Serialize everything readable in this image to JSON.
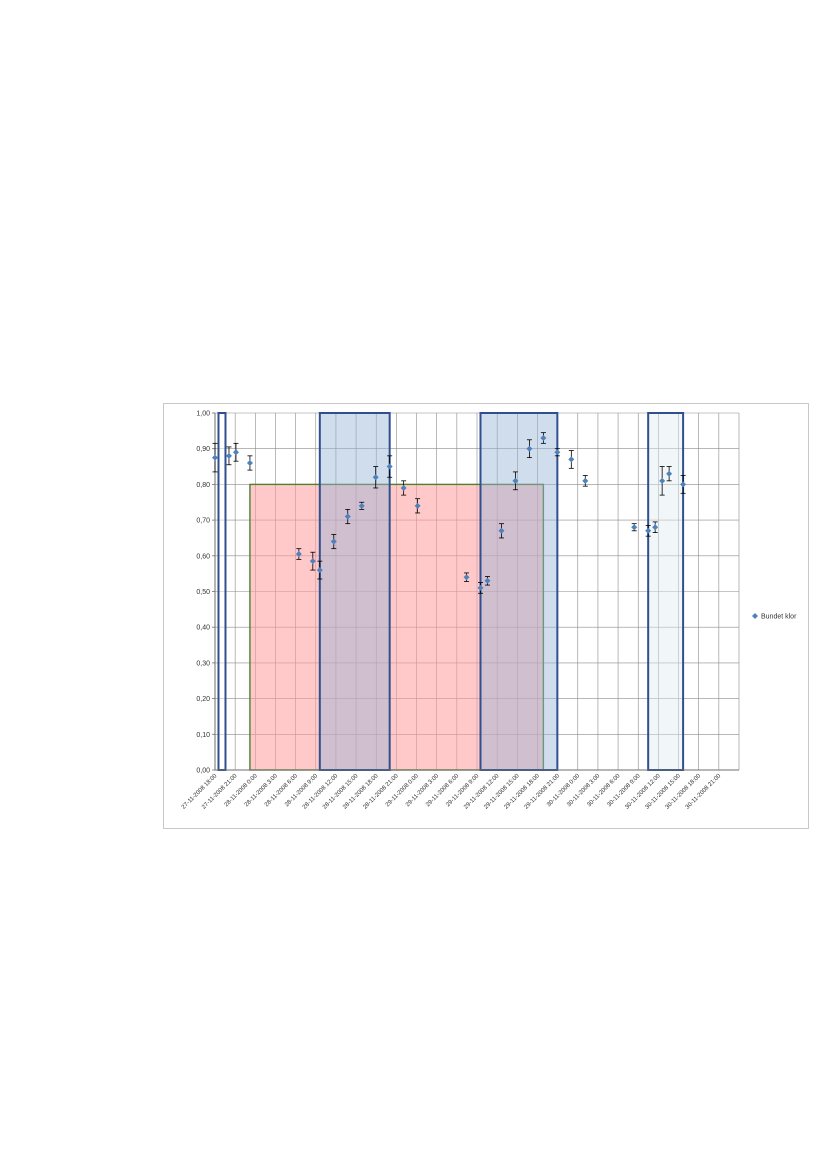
{
  "chart_data": {
    "type": "scatter",
    "title": "",
    "xlabel": "",
    "ylabel": "",
    "ylim": [
      0,
      1
    ],
    "y_ticks": [
      "0,00",
      "0,10",
      "0,20",
      "0,30",
      "0,40",
      "0,50",
      "0,60",
      "0,70",
      "0,80",
      "0,90",
      "1,00"
    ],
    "x_tick_labels": [
      "27-11-2008 18:00",
      "27-11-2008 21:00",
      "28-11-2008 0:00",
      "28-11-2008 3:00",
      "28-11-2008 6:00",
      "28-11-2008 9:00",
      "28-11-2008 12:00",
      "28-11-2008 15:00",
      "28-11-2008 18:00",
      "28-11-2008 21:00",
      "29-11-2008 0:00",
      "29-11-2008 3:00",
      "29-11-2008 6:00",
      "29-11-2008 9:00",
      "29-11-2008 12:00",
      "29-11-2008 15:00",
      "29-11-2008 18:00",
      "29-11-2008 21:00",
      "30-11-2008 0:00",
      "30-11-2008 3:00",
      "30-11-2008 6:00",
      "30-11-2008 9:00",
      "30-11-2008 12:00",
      "30-11-2008 15:00",
      "30-11-2008 18:00",
      "30-11-2008 21:00"
    ],
    "x_range_hours": [
      0,
      75
    ],
    "grid": true,
    "legend_position": "right",
    "series": [
      {
        "name": "Bundet klor",
        "color": "#4f81bd",
        "points": [
          {
            "x": 0.0,
            "y": 0.875,
            "err": 0.04
          },
          {
            "x": 2.0,
            "y": 0.88,
            "err": 0.025
          },
          {
            "x": 3.0,
            "y": 0.89,
            "err": 0.025
          },
          {
            "x": 5.0,
            "y": 0.86,
            "err": 0.02
          },
          {
            "x": 12.0,
            "y": 0.605,
            "err": 0.015
          },
          {
            "x": 14.0,
            "y": 0.585,
            "err": 0.025
          },
          {
            "x": 15.0,
            "y": 0.56,
            "err": 0.025
          },
          {
            "x": 17.0,
            "y": 0.64,
            "err": 0.02
          },
          {
            "x": 19.0,
            "y": 0.71,
            "err": 0.02
          },
          {
            "x": 21.0,
            "y": 0.74,
            "err": 0.01
          },
          {
            "x": 23.0,
            "y": 0.82,
            "err": 0.03
          },
          {
            "x": 25.0,
            "y": 0.85,
            "err": 0.03
          },
          {
            "x": 27.0,
            "y": 0.79,
            "err": 0.02
          },
          {
            "x": 29.0,
            "y": 0.74,
            "err": 0.02
          },
          {
            "x": 36.0,
            "y": 0.54,
            "err": 0.012
          },
          {
            "x": 38.0,
            "y": 0.51,
            "err": 0.015
          },
          {
            "x": 39.0,
            "y": 0.53,
            "err": 0.012
          },
          {
            "x": 41.0,
            "y": 0.67,
            "err": 0.02
          },
          {
            "x": 43.0,
            "y": 0.81,
            "err": 0.025
          },
          {
            "x": 45.0,
            "y": 0.9,
            "err": 0.025
          },
          {
            "x": 47.0,
            "y": 0.93,
            "err": 0.015
          },
          {
            "x": 49.0,
            "y": 0.89,
            "err": 0.01
          },
          {
            "x": 51.0,
            "y": 0.87,
            "err": 0.025
          },
          {
            "x": 53.0,
            "y": 0.81,
            "err": 0.015
          },
          {
            "x": 60.0,
            "y": 0.68,
            "err": 0.01
          },
          {
            "x": 62.0,
            "y": 0.67,
            "err": 0.015
          },
          {
            "x": 63.0,
            "y": 0.68,
            "err": 0.015
          },
          {
            "x": 64.0,
            "y": 0.81,
            "err": 0.04
          },
          {
            "x": 65.0,
            "y": 0.83,
            "err": 0.02
          },
          {
            "x": 67.0,
            "y": 0.8,
            "err": 0.025
          }
        ]
      }
    ],
    "shaded_regions": [
      {
        "kind": "blue-box",
        "x0": 0.5,
        "x1": 1.5,
        "y0": 0,
        "y1": 1.0,
        "fill": "#ffffff",
        "stroke": "#2f4f8f"
      },
      {
        "kind": "red-box",
        "x0": 5.0,
        "x1": 47.0,
        "y0": 0,
        "y1": 0.8,
        "fill": "#ff9c9c",
        "stroke": "#4f7f2f"
      },
      {
        "kind": "blue-box",
        "x0": 15.0,
        "x1": 25.0,
        "y0": 0,
        "y1": 1.0,
        "fill": "#95b3d7",
        "stroke": "#2f4f8f"
      },
      {
        "kind": "blue-box",
        "x0": 38.0,
        "x1": 49.0,
        "y0": 0,
        "y1": 1.0,
        "fill": "#95b3d7",
        "stroke": "#2f4f8f"
      },
      {
        "kind": "blue-box",
        "x0": 62.0,
        "x1": 67.0,
        "y0": 0,
        "y1": 1.0,
        "fill": "#dfeaf0",
        "stroke": "#2f4f8f"
      }
    ]
  }
}
